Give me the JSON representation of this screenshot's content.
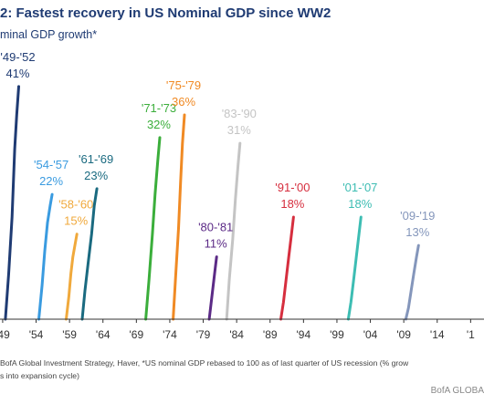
{
  "header": {
    "title": "2: Fastest recovery in US Nominal GDP since WW2",
    "subtitle": "minal GDP growth*"
  },
  "colors": {
    "title": "#1f3b73",
    "axis": "#333333",
    "label_text": "#333333"
  },
  "chart_data": {
    "type": "line",
    "title": "2: Fastest recovery in US Nominal GDP since WW2",
    "subtitle": "minal GDP growth*",
    "xlabel": "",
    "ylabel": "",
    "xlim": [
      1948.6,
      2021.0
    ],
    "ylim": [
      0,
      45
    ],
    "grid": false,
    "legend": "none",
    "x_ticks": [
      "'49",
      "'54",
      "'59",
      "'64",
      "'69",
      "'74",
      "'79",
      "'84",
      "'89",
      "'94",
      "'99",
      "'04",
      "'09",
      "'14",
      "'1"
    ],
    "x_tick_values": [
      1949,
      1954,
      1959,
      1964,
      1969,
      1974,
      1979,
      1984,
      1989,
      1994,
      1999,
      2004,
      2009,
      2014,
      2019
    ],
    "series": [
      {
        "name": "'49-'52",
        "pct": "41%",
        "color": "#1f3b73",
        "x": [
          1949.4,
          1949.9,
          1950.4,
          1950.8,
          1951.1,
          1951.4
        ],
        "y": [
          0,
          8,
          18,
          30,
          36,
          41
        ]
      },
      {
        "name": "'54-'57",
        "pct": "22%",
        "color": "#3a9be0",
        "x": [
          1954.4,
          1954.9,
          1955.3,
          1955.7,
          1956.1,
          1956.4
        ],
        "y": [
          0,
          6,
          12,
          17,
          20,
          22
        ]
      },
      {
        "name": "'58-'60",
        "pct": "15%",
        "color": "#f0a93c",
        "x": [
          1958.5,
          1958.9,
          1959.2,
          1959.5,
          1959.8,
          1960.1
        ],
        "y": [
          0,
          4,
          8,
          11,
          13,
          15
        ]
      },
      {
        "name": "'61-'69",
        "pct": "23%",
        "color": "#1a6a80",
        "x": [
          1960.9,
          1961.3,
          1961.8,
          1962.3,
          1962.7,
          1963.1
        ],
        "y": [
          0,
          5,
          10,
          15,
          20,
          23
        ]
      },
      {
        "name": "'71-'73",
        "pct": "32%",
        "color": "#3bae3b",
        "x": [
          1970.4,
          1970.9,
          1971.4,
          1971.8,
          1972.2,
          1972.5
        ],
        "y": [
          0,
          7,
          15,
          22,
          28,
          32
        ]
      },
      {
        "name": "'75-'79",
        "pct": "36%",
        "color": "#f08a24",
        "x": [
          1974.5,
          1974.9,
          1975.3,
          1975.6,
          1975.9,
          1976.2
        ],
        "y": [
          0,
          8,
          16,
          24,
          31,
          36
        ]
      },
      {
        "name": "'80-'81",
        "pct": "11%",
        "color": "#5b2a86",
        "x": [
          1979.9,
          1980.2,
          1980.5,
          1980.8,
          1981.0
        ],
        "y": [
          0,
          3,
          6,
          9,
          11
        ]
      },
      {
        "name": "'83-'90",
        "pct": "31%",
        "color": "#c4c4c4",
        "x": [
          1982.5,
          1982.9,
          1983.4,
          1983.8,
          1984.2,
          1984.5
        ],
        "y": [
          0,
          7,
          14,
          21,
          27,
          31
        ]
      },
      {
        "name": "'91-'00",
        "pct": "18%",
        "color": "#d62e3e",
        "x": [
          1990.6,
          1991.0,
          1991.4,
          1991.8,
          1992.2,
          1992.5
        ],
        "y": [
          0,
          3,
          7,
          11,
          15,
          18
        ]
      },
      {
        "name": "'01-'07",
        "pct": "18%",
        "color": "#3dbdb3",
        "x": [
          2000.7,
          2001.1,
          2001.5,
          2001.9,
          2002.3,
          2002.6
        ],
        "y": [
          0,
          3,
          7,
          11,
          15,
          18
        ]
      },
      {
        "name": "'09-'19",
        "pct": "13%",
        "color": "#8496bb",
        "x": [
          2009.3,
          2009.7,
          2010.1,
          2010.5,
          2010.9,
          2011.2
        ],
        "y": [
          0,
          2,
          5,
          8,
          11,
          13
        ]
      }
    ]
  },
  "footnotes": {
    "line1": "BofA Global Investment Strategy, Haver, *US nominal GDP rebased to 100 as of last quarter of US recession (% grow",
    "line2": "s into expansion cycle)",
    "brand": "BofA GLOBA"
  }
}
